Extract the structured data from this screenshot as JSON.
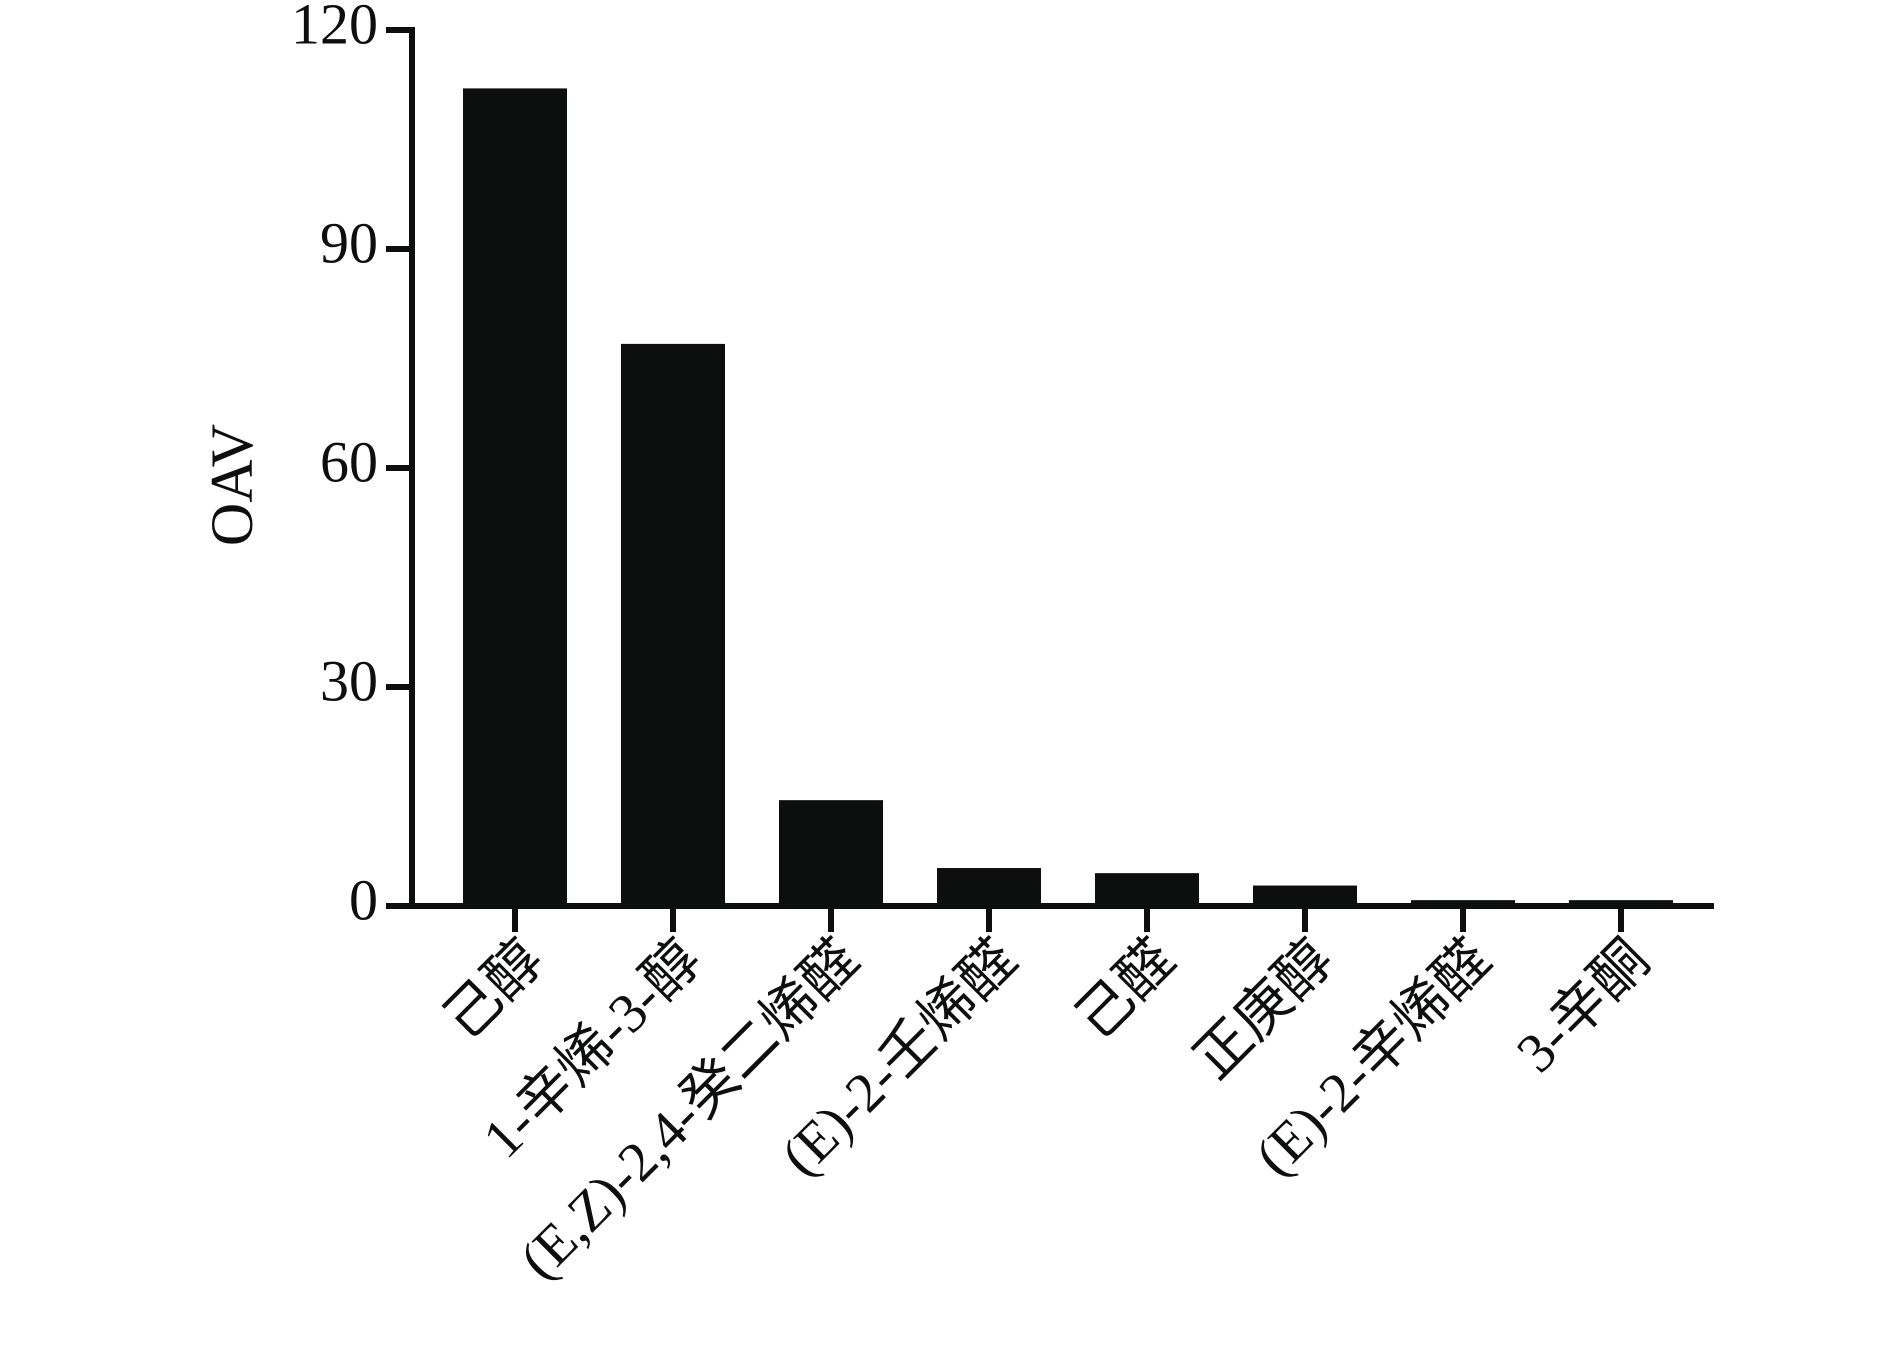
{
  "chart_data": {
    "type": "bar",
    "y_label": "OAV",
    "categories": [
      "己醇",
      "1-辛烯-3-醇",
      "(E,Z)-2,4-癸二烯醛",
      "(E)-2-壬烯醛",
      "己醛",
      "正庚醇",
      "(E)-2-辛烯醛",
      "3-辛酮"
    ],
    "values": [
      112,
      77,
      14.5,
      5.2,
      4.5,
      2.8,
      0.8,
      0.8
    ],
    "color": "#0d0e0e",
    "ylim": [
      0,
      120
    ],
    "yticks": [
      0,
      30,
      60,
      90,
      120
    ],
    "grid": false
  }
}
